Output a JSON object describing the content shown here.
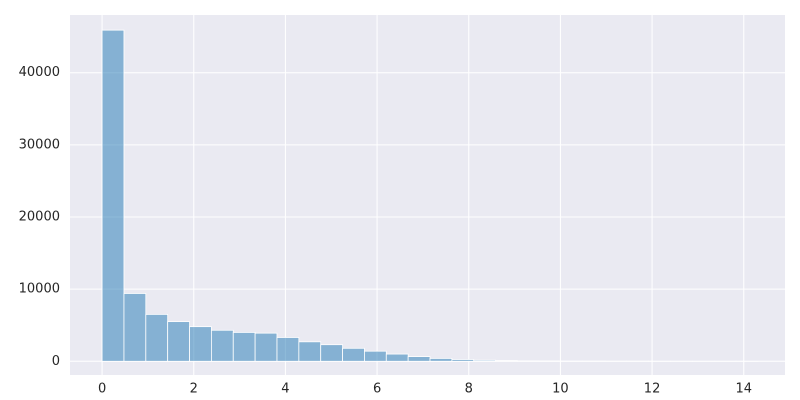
{
  "chart_data": {
    "type": "histogram",
    "bins": [
      0,
      0.477,
      0.954,
      1.431,
      1.908,
      2.385,
      2.862,
      3.339,
      3.816,
      4.293,
      4.77,
      5.247,
      5.724,
      6.201,
      6.678,
      7.155,
      7.632,
      8.109,
      8.586,
      9.063,
      9.54,
      10.017,
      10.494,
      10.971,
      11.448,
      11.925,
      12.402,
      12.879,
      13.356,
      13.833,
      14.31
    ],
    "values": [
      45900,
      9400,
      6500,
      5500,
      4800,
      4300,
      4000,
      3900,
      3300,
      2700,
      2300,
      1800,
      1400,
      1000,
      650,
      400,
      250,
      150,
      100,
      60,
      40,
      25,
      15,
      10,
      5,
      3,
      2,
      1,
      1,
      1
    ],
    "color": "#1f77b4",
    "xlim": [
      -0.7,
      14.9
    ],
    "xticks": [
      0,
      2,
      4,
      6,
      8,
      10,
      12,
      14
    ],
    "ylim": [
      -1900,
      48000
    ],
    "yticks": [
      0,
      10000,
      20000,
      30000,
      40000
    ],
    "grid": true
  }
}
